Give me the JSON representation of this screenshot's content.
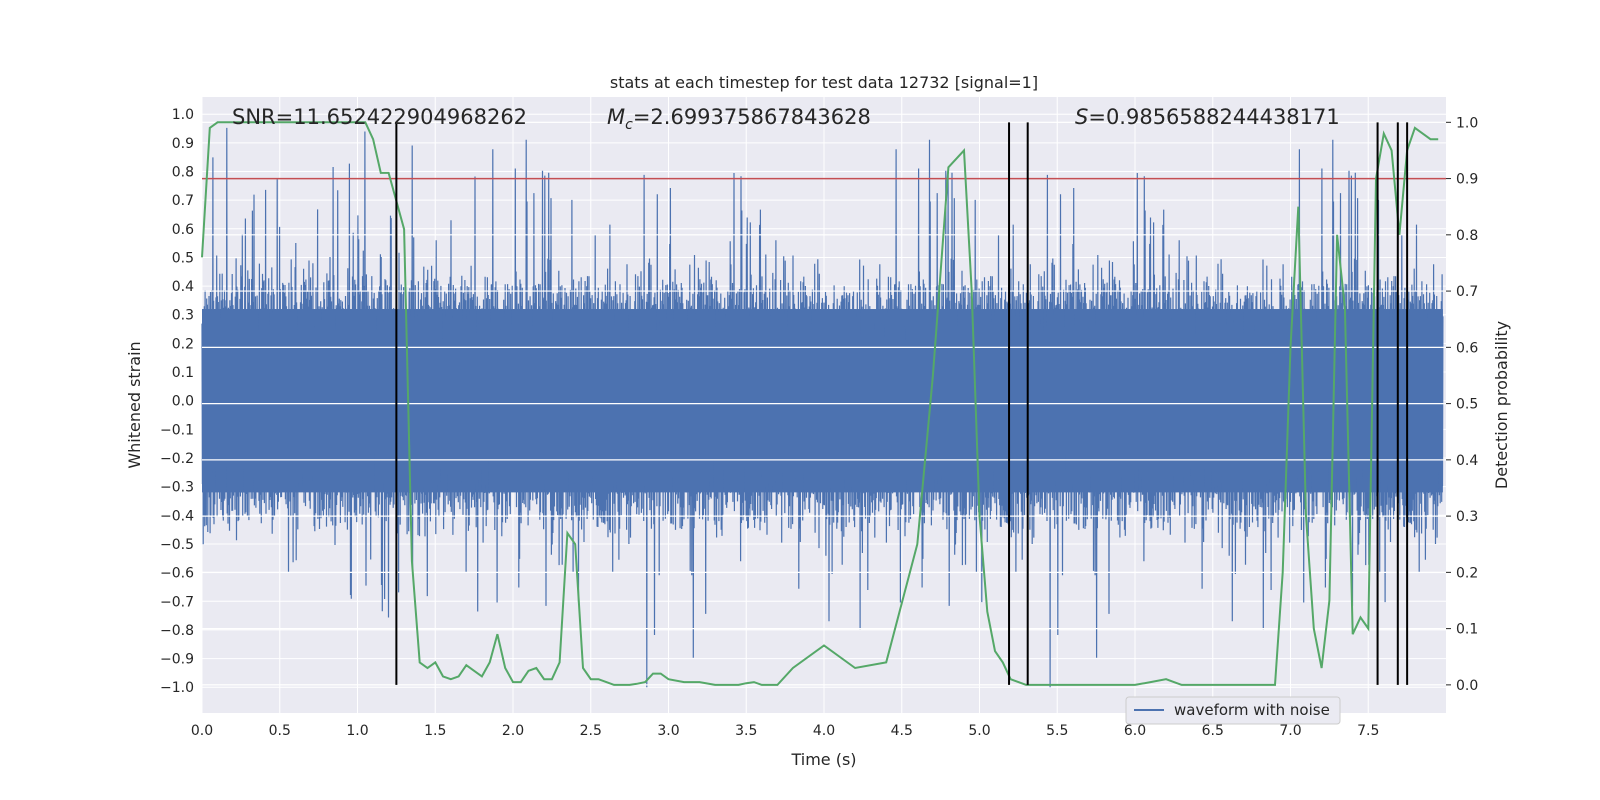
{
  "chart_data": {
    "type": "line",
    "title": "stats at each timestep for test data 12732 [signal=1]",
    "xlabel": "Time (s)",
    "ylabel_left": "Whitened strain",
    "ylabel_right": "Detection probability",
    "xlim": [
      0.0,
      8.0
    ],
    "ylim_left": [
      -1.09,
      1.06
    ],
    "ylim_right": [
      -0.05,
      1.045
    ],
    "xticks": [
      "0.0",
      "0.5",
      "1.0",
      "1.5",
      "2.0",
      "2.5",
      "3.0",
      "3.5",
      "4.0",
      "4.5",
      "5.0",
      "5.5",
      "6.0",
      "6.5",
      "7.0",
      "7.5"
    ],
    "yticks_left": [
      "1.0",
      "0.9",
      "0.8",
      "0.7",
      "0.6",
      "0.5",
      "0.4",
      "0.3",
      "0.2",
      "0.1",
      "0.0",
      "-0.1",
      "-0.2",
      "-0.3",
      "-0.4",
      "-0.5",
      "-0.6",
      "-0.7",
      "-0.8",
      "-0.9",
      "-1.0"
    ],
    "yticks_right": [
      "1.0",
      "0.9",
      "0.8",
      "0.7",
      "0.6",
      "0.5",
      "0.4",
      "0.3",
      "0.2",
      "0.1",
      "0.0"
    ],
    "annotations": {
      "snr": "SNR=11.652422904968262",
      "mc": "=2.699375867843628",
      "mc_symbol": "M",
      "mc_sub": "c",
      "s": "=0.9856588244438171",
      "s_symbol": "S"
    },
    "threshold": 0.9,
    "detection_lines_x": [
      1.25,
      5.19,
      5.31,
      7.56,
      7.69,
      7.75
    ],
    "legend": {
      "label": "waveform with noise",
      "position": "lower-right"
    },
    "colors": {
      "background": "#eaeaf2",
      "waveform": "#4c72b0",
      "probability": "#55a868",
      "threshold": "#c44e52",
      "detection": "#000000",
      "grid": "#ffffff"
    },
    "series": [
      {
        "name": "waveform with noise",
        "axis": "left",
        "description_values": "dense noisy strain, typical envelope ±0.5, peaks to ±1.0"
      },
      {
        "name": "detection probability",
        "axis": "right",
        "x": [
          0.0,
          0.05,
          0.1,
          0.2,
          0.3,
          0.4,
          0.5,
          0.6,
          0.7,
          0.8,
          0.9,
          1.0,
          1.05,
          1.1,
          1.15,
          1.2,
          1.25,
          1.3,
          1.35,
          1.4,
          1.45,
          1.5,
          1.55,
          1.6,
          1.65,
          1.7,
          1.75,
          1.8,
          1.85,
          1.9,
          1.95,
          2.0,
          2.05,
          2.1,
          2.15,
          2.2,
          2.25,
          2.3,
          2.35,
          2.4,
          2.45,
          2.5,
          2.55,
          2.6,
          2.65,
          2.7,
          2.75,
          2.8,
          2.85,
          2.9,
          2.95,
          3.0,
          3.1,
          3.2,
          3.3,
          3.4,
          3.45,
          3.5,
          3.55,
          3.6,
          3.7,
          3.8,
          4.0,
          4.2,
          4.4,
          4.6,
          4.7,
          4.8,
          4.9,
          4.95,
          5.0,
          5.05,
          5.1,
          5.15,
          5.2,
          5.25,
          5.3,
          5.35,
          5.4,
          5.45,
          5.5,
          5.55,
          5.6,
          5.65,
          5.7,
          5.8,
          5.9,
          6.0,
          6.1,
          6.2,
          6.25,
          6.3,
          6.35,
          6.4,
          6.5,
          6.6,
          6.7,
          6.8,
          6.9,
          6.95,
          7.0,
          7.05,
          7.1,
          7.15,
          7.2,
          7.25,
          7.3,
          7.35,
          7.4,
          7.45,
          7.5,
          7.55,
          7.6,
          7.65,
          7.7,
          7.75,
          7.8,
          7.85,
          7.9,
          7.95
        ],
        "values": [
          0.76,
          0.99,
          1.0,
          1.0,
          1.0,
          1.0,
          1.0,
          1.0,
          1.0,
          1.0,
          1.0,
          1.0,
          1.0,
          0.97,
          0.91,
          0.91,
          0.86,
          0.81,
          0.22,
          0.04,
          0.03,
          0.04,
          0.015,
          0.01,
          0.015,
          0.035,
          0.025,
          0.015,
          0.04,
          0.09,
          0.03,
          0.005,
          0.005,
          0.025,
          0.03,
          0.01,
          0.01,
          0.04,
          0.27,
          0.25,
          0.03,
          0.01,
          0.01,
          0.005,
          0.0,
          0.0,
          0.0,
          0.002,
          0.005,
          0.02,
          0.02,
          0.01,
          0.005,
          0.005,
          0.0,
          0.0,
          0.0,
          0.003,
          0.005,
          0.0,
          0.0,
          0.03,
          0.07,
          0.03,
          0.04,
          0.25,
          0.55,
          0.92,
          0.95,
          0.7,
          0.3,
          0.13,
          0.06,
          0.04,
          0.01,
          0.005,
          0.0,
          0.0,
          0.0,
          0.0,
          0.0,
          0.0,
          0.0,
          0.0,
          0.0,
          0.0,
          0.0,
          0.0,
          0.005,
          0.01,
          0.005,
          0.0,
          0.0,
          0.0,
          0.0,
          0.0,
          0.0,
          0.0,
          0.0,
          0.2,
          0.6,
          0.85,
          0.3,
          0.1,
          0.03,
          0.15,
          0.8,
          0.67,
          0.09,
          0.12,
          0.1,
          0.9,
          0.98,
          0.95,
          0.8,
          0.95,
          0.99,
          0.98,
          0.97,
          0.97
        ]
      }
    ]
  }
}
